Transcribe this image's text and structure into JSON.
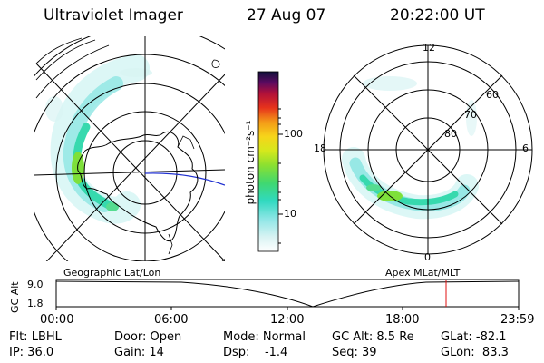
{
  "header": {
    "title": "Ultraviolet Imager",
    "date": "27 Aug 07",
    "time": "20:22:00 UT"
  },
  "colorbar": {
    "label": "photon cm⁻²s⁻¹",
    "ticks": [
      "100",
      "10"
    ]
  },
  "left_map": {
    "caption": "Geographic Lat/Lon"
  },
  "right_map": {
    "caption": "Apex MLat/MLT",
    "mlt_labels": {
      "top": "12",
      "left": "18",
      "right": "6",
      "bottom": "0"
    },
    "lat_labels": [
      "60",
      "70",
      "80"
    ]
  },
  "altitude_panel": {
    "ylabel": "GC Alt",
    "yticks": [
      "9.0",
      "1.8"
    ],
    "xticks": [
      "00:00",
      "06:00",
      "12:00",
      "18:00",
      "23:59"
    ]
  },
  "info": {
    "flt": "Flt: LBHL",
    "ip": "IP: 36.0",
    "door": "Door: Open",
    "gain": "Gain: 14",
    "mode": "Mode: Normal",
    "dsp": "Dsp:    -1.4",
    "gcalt": "GC Alt: 8.5 Re",
    "seq": "Seq: 39",
    "glat": "GLat: -82.1",
    "glon": "GLon:  83.3"
  },
  "colors": {
    "aurora_low": "#9ee8e6",
    "aurora_mid": "#33d9b0",
    "aurora_high": "#7ee03a",
    "terminator": "#2030d0",
    "time_marker": "#e01010"
  }
}
